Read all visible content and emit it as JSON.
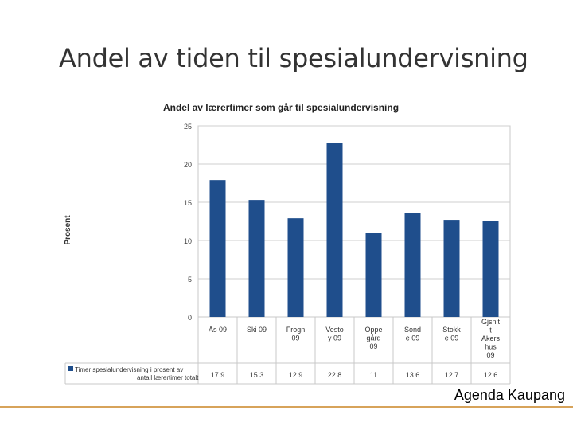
{
  "slide": {
    "title": "Andel av tiden til spesialundervisning",
    "footer": "Agenda Kaupang"
  },
  "chart_data": {
    "type": "bar",
    "title": "Andel av lærertimer som går til spesialundervisning",
    "ylabel": "Prosent",
    "xlabel": "",
    "ylim": [
      0,
      25
    ],
    "yticks": [
      0,
      5,
      10,
      15,
      20,
      25
    ],
    "grid": true,
    "color": "#1f4e8c",
    "categories": [
      [
        "Ås 09"
      ],
      [
        "Ski 09"
      ],
      [
        "Frogn",
        "09"
      ],
      [
        "Vesto",
        "y 09"
      ],
      [
        "Oppe",
        "gård",
        "09"
      ],
      [
        "Sond",
        "e 09"
      ],
      [
        "Stokk",
        "e 09"
      ],
      [
        "Gjsnit",
        "t",
        "Akers",
        "hus",
        "09"
      ]
    ],
    "series": [
      {
        "name": "Timer spesialundervisning i prosent av antall lærertimer totalt",
        "name_lines": [
          "Timer spesialundervisning i prosent av",
          "antall lærertimer totalt"
        ],
        "values": [
          17.9,
          15.3,
          12.9,
          22.8,
          11,
          13.6,
          12.7,
          12.6
        ]
      }
    ]
  }
}
